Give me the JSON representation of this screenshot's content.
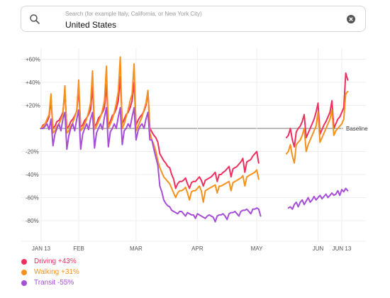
{
  "search": {
    "placeholder": "Search (for example Italy, California, or New York City)",
    "value": "United States"
  },
  "colors": {
    "driving": "#ef2f5e",
    "walking": "#f5921e",
    "transit": "#a64ed6",
    "grid": "#eeeeee",
    "baseline": "#777777",
    "text": "#555555"
  },
  "legend": [
    {
      "key": "driving",
      "label": "Driving +43%"
    },
    {
      "key": "walking",
      "label": "Walking +31%"
    },
    {
      "key": "transit",
      "label": "Transit -55%"
    }
  ],
  "chart_data": {
    "type": "line",
    "x_start": "2020-01-13",
    "x_end": "2020-06-13",
    "ylim": [
      -90,
      65
    ],
    "y_ticks": [
      60,
      40,
      20,
      0,
      -20,
      -40,
      -60,
      -80
    ],
    "y_tick_labels": [
      "+60%",
      "+40%",
      "+20%",
      "",
      "-20%",
      "-40%",
      "-60%",
      "-80%"
    ],
    "baseline_label": "Baseline",
    "x_ticks": [
      {
        "date": "2020-01-13",
        "label": "JAN 13"
      },
      {
        "date": "2020-02-01",
        "label": "FEB"
      },
      {
        "date": "2020-03-01",
        "label": "MAR"
      },
      {
        "date": "2020-04-01",
        "label": "APR"
      },
      {
        "date": "2020-05-01",
        "label": "MAY"
      },
      {
        "date": "2020-06-01",
        "label": "JUN"
      },
      {
        "date": "2020-06-13",
        "label": "JUN 13"
      }
    ],
    "grid": true,
    "legend_position": "bottom-left",
    "series": [
      {
        "name": "Driving +43%",
        "key": "driving",
        "segments": [
          {
            "start": "2020-01-13",
            "values": [
              0,
              3,
              4,
              6,
              10,
              25,
              0,
              2,
              6,
              7,
              10,
              14,
              32,
              0,
              2,
              6,
              8,
              11,
              15,
              34,
              1,
              3,
              7,
              9,
              12,
              16,
              36,
              2,
              4,
              9,
              11,
              14,
              18,
              38,
              3,
              6,
              11,
              13,
              17,
              24,
              45,
              4,
              8,
              12,
              14,
              18,
              24,
              40,
              3,
              7,
              10,
              12,
              15,
              20,
              32,
              0,
              -3,
              -6,
              -8,
              -12,
              -22,
              -25,
              -28,
              -30,
              -33,
              -34,
              -40,
              -44,
              -52,
              -48,
              -46,
              -46,
              -45,
              -43,
              -48,
              -52,
              -47,
              -46,
              -46,
              -44,
              -42,
              -45,
              -50,
              -45,
              -44,
              -43,
              -42,
              -40,
              -38,
              -46,
              -40,
              -40,
              -38,
              -37,
              -35,
              -33,
              -42,
              -35,
              -34,
              -33,
              -31,
              -29,
              -26,
              -38,
              -29,
              -28,
              -27,
              -24,
              -22,
              -20,
              -30
            ]
          },
          {
            "start": "2020-05-16",
            "values": [
              -8,
              -6,
              0,
              -10,
              -16,
              -3,
              0,
              2,
              6,
              12,
              -8,
              -4,
              0,
              4,
              8,
              14,
              22,
              -5,
              -1,
              3,
              6,
              10,
              14,
              24,
              0,
              4,
              8,
              10,
              14,
              18,
              48,
              42
            ]
          }
        ]
      },
      {
        "name": "Walking +31%",
        "key": "walking",
        "segments": [
          {
            "start": "2020-01-13",
            "values": [
              0,
              2,
              4,
              8,
              12,
              30,
              -4,
              -2,
              2,
              4,
              8,
              12,
              37,
              -4,
              -2,
              2,
              5,
              10,
              15,
              42,
              -2,
              0,
              4,
              8,
              14,
              22,
              50,
              -1,
              2,
              6,
              10,
              16,
              24,
              54,
              0,
              4,
              8,
              14,
              22,
              32,
              62,
              0,
              4,
              10,
              16,
              24,
              30,
              56,
              -2,
              2,
              6,
              10,
              16,
              22,
              33,
              -4,
              -10,
              -14,
              -20,
              -28,
              -34,
              -38,
              -42,
              -44,
              -46,
              -48,
              -52,
              -56,
              -60,
              -56,
              -54,
              -54,
              -53,
              -51,
              -56,
              -62,
              -55,
              -54,
              -54,
              -52,
              -50,
              -54,
              -64,
              -54,
              -53,
              -52,
              -51,
              -50,
              -49,
              -56,
              -50,
              -50,
              -49,
              -48,
              -47,
              -46,
              -54,
              -47,
              -46,
              -45,
              -44,
              -43,
              -41,
              -50,
              -42,
              -41,
              -40,
              -39,
              -38,
              -36,
              -44
            ]
          },
          {
            "start": "2020-05-16",
            "values": [
              -22,
              -20,
              -14,
              -24,
              -30,
              -14,
              -12,
              -10,
              -6,
              0,
              -20,
              -14,
              -10,
              -6,
              -2,
              2,
              14,
              -12,
              -8,
              -4,
              0,
              4,
              8,
              16,
              -6,
              -2,
              0,
              2,
              4,
              8,
              30,
              32
            ]
          }
        ]
      },
      {
        "name": "Transit -55%",
        "key": "transit",
        "segments": [
          {
            "start": "2020-01-13",
            "values": [
              0,
              0,
              2,
              4,
              -1,
              8,
              -15,
              -5,
              0,
              4,
              -2,
              8,
              14,
              -18,
              -6,
              0,
              4,
              -2,
              8,
              16,
              -18,
              -5,
              0,
              4,
              -1,
              8,
              14,
              -17,
              -4,
              0,
              4,
              -1,
              10,
              18,
              -16,
              -3,
              0,
              4,
              0,
              10,
              18,
              -14,
              -2,
              0,
              4,
              1,
              10,
              18,
              -10,
              -2,
              2,
              4,
              0,
              8,
              14,
              -10,
              -10,
              -18,
              -25,
              -32,
              -50,
              -55,
              -62,
              -65,
              -67,
              -68,
              -71,
              -72,
              -73,
              -74,
              -72,
              -72,
              -74,
              -76,
              -73,
              -74,
              -75,
              -75,
              -78,
              -74,
              -75,
              -76,
              -77,
              -78,
              -76,
              -75,
              -76,
              -77,
              -81,
              -76,
              -75,
              -75,
              -74,
              -76,
              -79,
              -74,
              -73,
              -73,
              -72,
              -74,
              -76,
              -72,
              -71,
              -71,
              -70,
              -72,
              -74,
              -70,
              -70,
              -69,
              -70,
              -76
            ]
          },
          {
            "start": "2020-05-17",
            "values": [
              -69,
              -68,
              -70,
              -66,
              -64,
              -68,
              -64,
              -62,
              -66,
              -63,
              -60,
              -64,
              -62,
              -59,
              -62,
              -60,
              -58,
              -61,
              -59,
              -57,
              -60,
              -58,
              -56,
              -58,
              -57,
              -54,
              -58,
              -53,
              -55,
              -52,
              -54
            ]
          }
        ]
      }
    ]
  }
}
